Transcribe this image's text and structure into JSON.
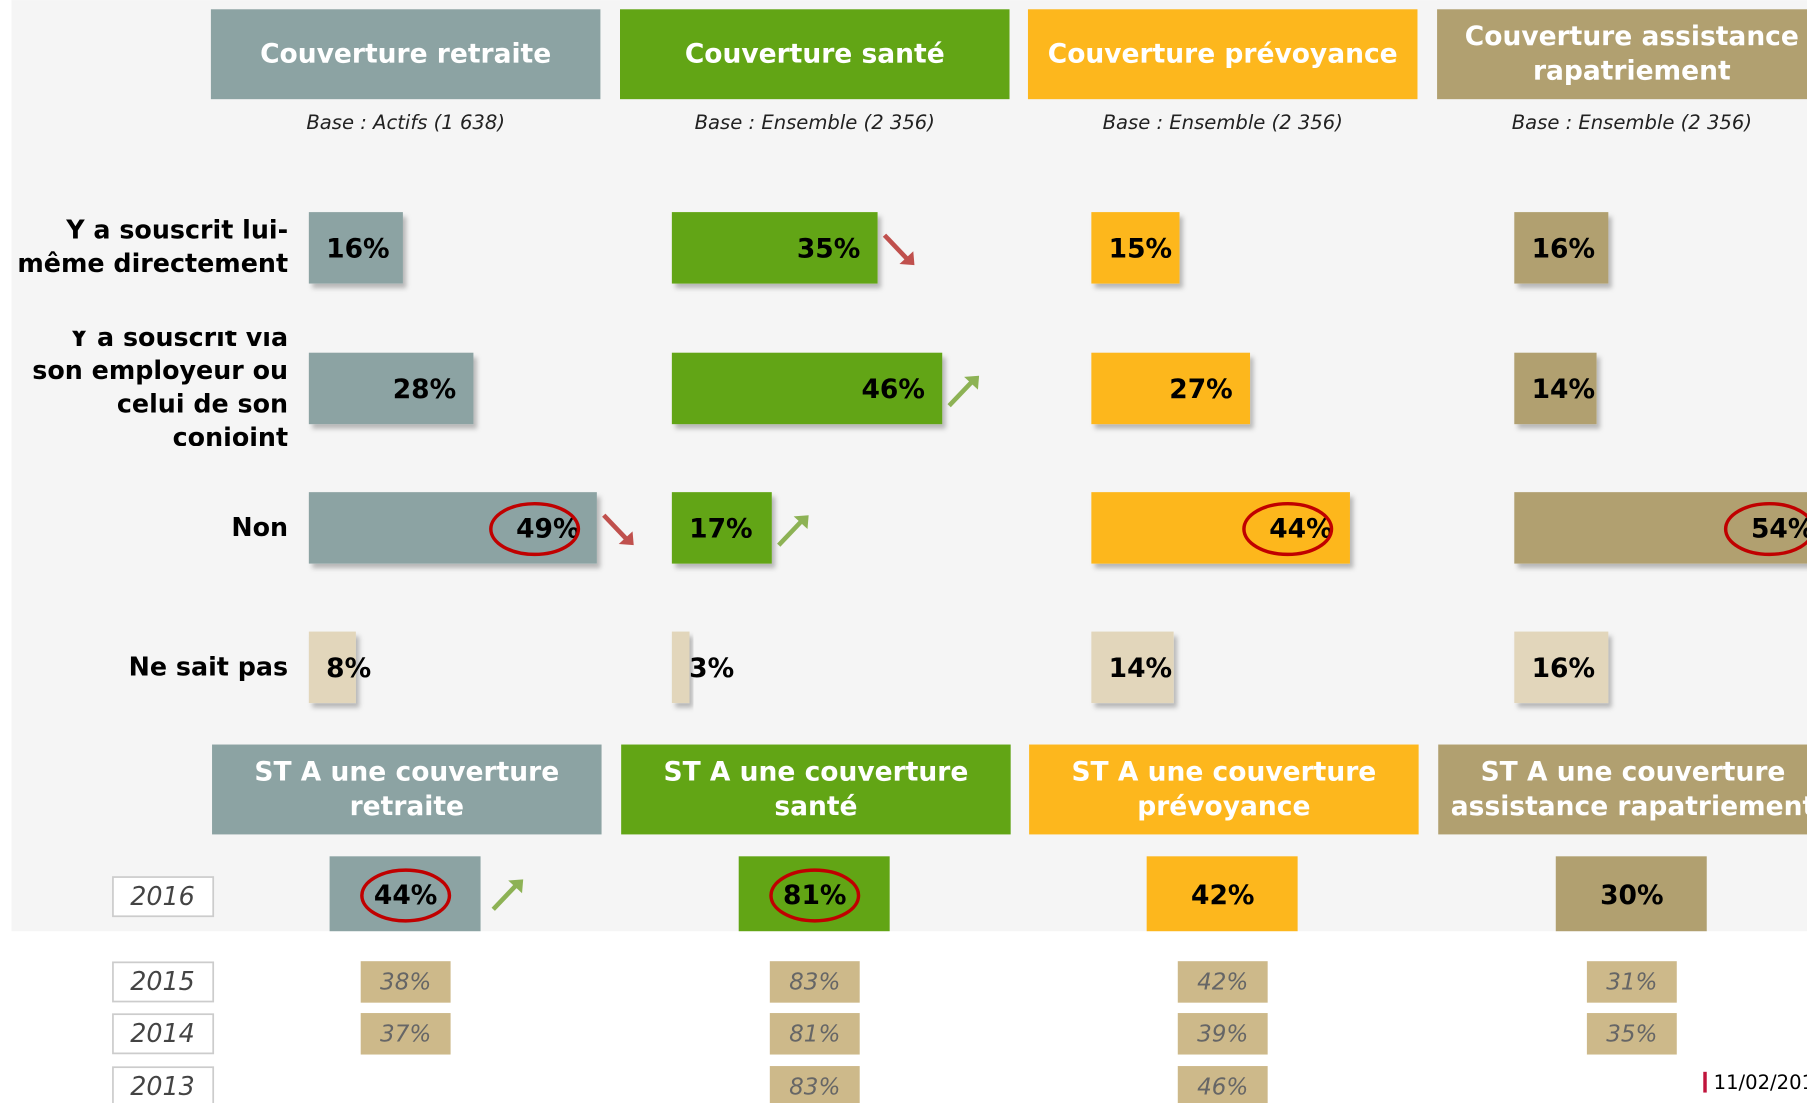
{
  "row_labels": [
    "Y a souscrit lui-même directement",
    "Y a souscrit via son employeur ou celui de son conjoint",
    "Non",
    "Ne sait pas"
  ],
  "year_labels": [
    "2016",
    "2015",
    "2014",
    "2013"
  ],
  "footer": "11/02/201",
  "unknown_color": "#e2d6bb",
  "history_color": "#cdb98a",
  "chart_data": [
    {
      "type": "bar",
      "title": "Couverture retraite",
      "subtitle": "Base :  Actifs (1 638)",
      "color": "#8ca3a3",
      "values": [
        16,
        28,
        49,
        8
      ],
      "value_labels": [
        "16%",
        "28%",
        "49%",
        "8%"
      ],
      "trends": [
        null,
        null,
        "down",
        null
      ],
      "circled": [
        false,
        false,
        true,
        false
      ],
      "total_title": "ST A une couverture retraite",
      "total_value": 44,
      "total_label": "44%",
      "total_trend": "up",
      "total_circled": true,
      "history_values": [
        38,
        37,
        null
      ],
      "history_labels": [
        "38%",
        "37%",
        null
      ]
    },
    {
      "type": "bar",
      "title": "Couverture santé",
      "subtitle": "Base :  Ensemble (2 356)",
      "color": "#62a515",
      "values": [
        35,
        46,
        17,
        3
      ],
      "value_labels": [
        "35%",
        "46%",
        "17%",
        "3%"
      ],
      "trends": [
        "down",
        "up",
        "up",
        null
      ],
      "circled": [
        false,
        false,
        false,
        false
      ],
      "total_title": "ST A une couverture santé",
      "total_value": 81,
      "total_label": "81%",
      "total_trend": null,
      "total_circled": true,
      "history_values": [
        83,
        81,
        83
      ],
      "history_labels": [
        "83%",
        "81%",
        "83%"
      ]
    },
    {
      "type": "bar",
      "title": "Couverture prévoyance",
      "subtitle": "Base :  Ensemble (2 356)",
      "color": "#fdb71d",
      "values": [
        15,
        27,
        44,
        14
      ],
      "value_labels": [
        "15%",
        "27%",
        "44%",
        "14%"
      ],
      "trends": [
        null,
        null,
        null,
        null
      ],
      "circled": [
        false,
        false,
        true,
        false
      ],
      "total_title": "ST A une couverture prévoyance",
      "total_value": 42,
      "total_label": "42%",
      "total_trend": null,
      "total_circled": false,
      "history_values": [
        42,
        39,
        46
      ],
      "history_labels": [
        "42%",
        "39%",
        "46%"
      ]
    },
    {
      "type": "bar",
      "title": "Couverture assistance rapatriement",
      "subtitle": "Base :  Ensemble (2 356)",
      "color": "#b1a070",
      "values": [
        16,
        14,
        54,
        16
      ],
      "value_labels": [
        "16%",
        "14%",
        "54%",
        "16%"
      ],
      "trends": [
        null,
        null,
        null,
        null
      ],
      "circled": [
        false,
        false,
        true,
        false
      ],
      "total_title": "ST A une couverture assistance rapatriement",
      "total_value": 30,
      "total_label": "30%",
      "total_trend": null,
      "total_circled": false,
      "history_values": [
        31,
        35,
        null
      ],
      "history_labels": [
        "31%",
        "35%",
        null
      ]
    }
  ]
}
